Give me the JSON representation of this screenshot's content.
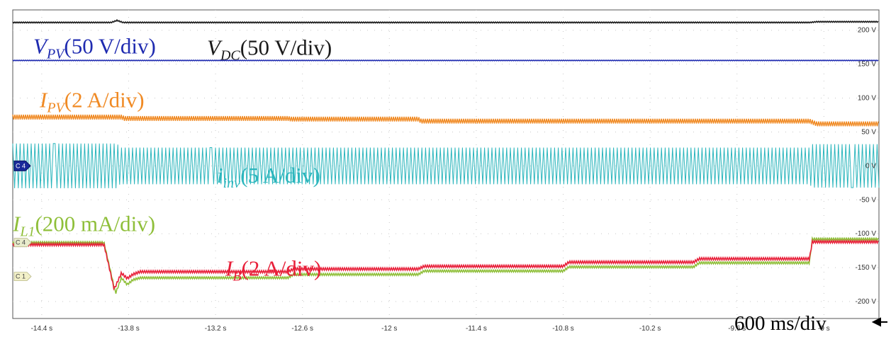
{
  "chart_data": {
    "type": "line",
    "xlim": [
      -14.6,
      -8.62
    ],
    "ylim": [
      -225,
      230
    ],
    "x_ticks": [
      "-14.4 s",
      "-13.8 s",
      "-13.2 s",
      "-12.6 s",
      "-12 s",
      "-11.4 s",
      "-10.8 s",
      "-10.2 s",
      "-9.6 s",
      "-9 s"
    ],
    "x_tick_values": [
      -14.4,
      -13.8,
      -13.2,
      -12.6,
      -12.0,
      -11.4,
      -10.8,
      -10.2,
      -9.6,
      -9.0
    ],
    "y_ticks": [
      "200 V",
      "150 V",
      "100 V",
      "50 V",
      "0 V",
      "-50 V",
      "-100 V",
      "-150 V",
      "-200 V"
    ],
    "y_tick_values": [
      200,
      150,
      100,
      50,
      0,
      -50,
      -100,
      -150,
      -200
    ],
    "grid": true,
    "timebase": "600 ms/div",
    "channel_markers": [
      {
        "text": "C 4",
        "y": 0,
        "color": "#1a2a9a",
        "text_color": "#ffffff",
        "style": "arrow"
      },
      {
        "text": "C 4",
        "y": -113,
        "color": "#e8eccc",
        "text_color": "#444444",
        "style": "tag"
      },
      {
        "text": "C 1",
        "y": -163,
        "color": "#f2f0c8",
        "text_color": "#444444",
        "style": "tag"
      }
    ],
    "series": [
      {
        "key": "vdc",
        "label_main": "V",
        "label_sub": "DC",
        "label_rest": "(50 V/div)",
        "color": "#1a1a1a",
        "ripple": 0.7,
        "x": [
          -14.6,
          -13.92,
          -13.88,
          -13.84,
          -9.1,
          -9.05,
          -8.62
        ],
        "y": [
          211.5,
          211.5,
          214.5,
          211.5,
          211.5,
          212.5,
          212.5
        ]
      },
      {
        "key": "vpv",
        "label_main": "V",
        "label_sub": "PV",
        "label_rest": "(50 V/div)",
        "color": "#1f2bb0",
        "ripple": 0.4,
        "x": [
          -14.6,
          -8.62
        ],
        "y": [
          155.5,
          155.5
        ]
      },
      {
        "key": "ipv",
        "label_main": "I",
        "label_sub": "PV",
        "label_rest": "(2 A/div)",
        "color": "#f08a24",
        "ripple": 3.5,
        "x": [
          -14.6,
          -13.85,
          -13.83,
          -12.7,
          -12.68,
          -11.8,
          -11.78,
          -9.1,
          -9.05,
          -8.62
        ],
        "y": [
          72,
          72,
          70,
          70,
          69,
          69,
          66,
          66,
          62,
          62
        ]
      },
      {
        "key": "iinv",
        "label_main": "i",
        "label_sub": "inv",
        "label_rest": "(5 A/div)",
        "color": "#2cb6bd",
        "ripple": 0,
        "envelope": true,
        "x": [
          -14.6,
          -13.88,
          -13.86,
          -9.1,
          -9.08,
          -8.62
        ],
        "y": [
          33,
          33,
          27,
          27,
          32,
          32
        ]
      },
      {
        "key": "il1",
        "label_main": "I",
        "label_sub": "L1",
        "label_rest": "(200 mA/div)",
        "color": "#8fbf3a",
        "ripple": 1.5,
        "x": [
          -14.6,
          -13.97,
          -13.89,
          -13.85,
          -13.81,
          -13.77,
          -13.72,
          -12.7,
          -12.66,
          -11.8,
          -11.76,
          -10.8,
          -10.76,
          -9.9,
          -9.86,
          -9.1,
          -9.08,
          -8.62
        ],
        "y": [
          -113,
          -113,
          -188,
          -165,
          -175,
          -168,
          -165,
          -165,
          -160,
          -160,
          -155,
          -155,
          -149,
          -149,
          -143,
          -143,
          -108,
          -108
        ]
      },
      {
        "key": "ib",
        "label_main": "I",
        "label_sub": "B",
        "label_rest": "(2 A/div)",
        "color": "#e8203a",
        "ripple": 1.8,
        "x": [
          -14.6,
          -13.97,
          -13.9,
          -13.85,
          -13.81,
          -13.77,
          -13.72,
          -12.7,
          -12.66,
          -11.8,
          -11.76,
          -10.8,
          -10.76,
          -9.9,
          -9.86,
          -9.1,
          -9.08,
          -8.62
        ],
        "y": [
          -116,
          -116,
          -182,
          -158,
          -166,
          -160,
          -156,
          -156,
          -152,
          -152,
          -148,
          -148,
          -142,
          -142,
          -137,
          -137,
          -112,
          -112
        ]
      }
    ],
    "labels_layout": [
      {
        "key": "vpv"
      },
      {
        "key": "vdc"
      },
      {
        "key": "ipv"
      },
      {
        "key": "iinv"
      },
      {
        "key": "il1"
      },
      {
        "key": "ib"
      }
    ]
  }
}
